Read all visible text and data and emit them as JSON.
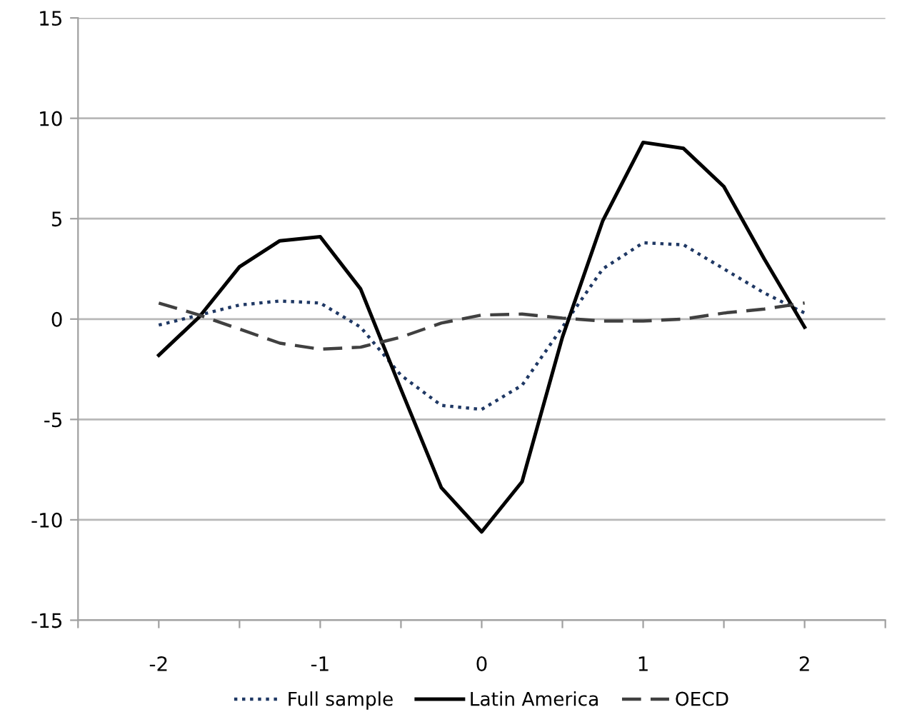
{
  "chart_data": {
    "type": "line",
    "x": [
      -2,
      -1.75,
      -1.5,
      -1.25,
      -1,
      -0.75,
      -0.5,
      -0.25,
      0,
      0.25,
      0.5,
      0.75,
      1,
      1.25,
      1.5,
      1.75,
      2
    ],
    "series": [
      {
        "name": "Full sample",
        "color": "#1f3864",
        "line_style": "dotted",
        "values": [
          -0.3,
          0.2,
          0.7,
          0.9,
          0.8,
          -0.4,
          -2.8,
          -4.3,
          -4.5,
          -3.3,
          -0.4,
          2.5,
          3.8,
          3.7,
          2.5,
          1.3,
          0.3
        ]
      },
      {
        "name": "Latin America",
        "color": "#000000",
        "line_style": "solid",
        "values": [
          -1.8,
          0.1,
          2.6,
          3.9,
          4.1,
          1.5,
          -3.5,
          -8.4,
          -10.6,
          -8.1,
          -0.9,
          4.9,
          8.8,
          8.5,
          6.6,
          3.0,
          -0.4
        ]
      },
      {
        "name": "OECD",
        "color": "#404040",
        "line_style": "dashed",
        "values": [
          0.8,
          0.2,
          -0.5,
          -1.2,
          -1.5,
          -1.4,
          -0.9,
          -0.2,
          0.2,
          0.25,
          0.05,
          -0.1,
          -0.1,
          0.0,
          0.3,
          0.5,
          0.8
        ]
      }
    ],
    "xlim": [
      -2.5,
      2.5
    ],
    "xticks": [
      {
        "value": -2.5,
        "label": null
      },
      -2,
      {
        "value": -1.5,
        "label": null
      },
      -1,
      {
        "value": -0.5,
        "label": null
      },
      0,
      {
        "value": 0.5,
        "label": null
      },
      1,
      {
        "value": 1.5,
        "label": null
      },
      2,
      {
        "value": 2.5,
        "label": null
      }
    ],
    "ylim": [
      -15,
      15
    ],
    "yticks": [
      -15,
      -10,
      -5,
      0,
      5,
      10,
      15
    ],
    "grid": "y",
    "legend": "bottom",
    "marker": "none"
  }
}
